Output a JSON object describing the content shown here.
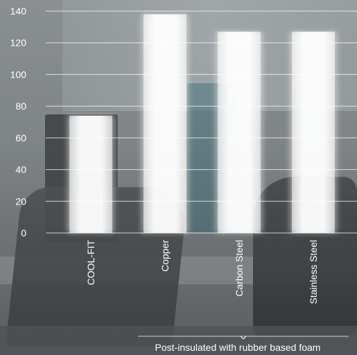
{
  "chart_data": {
    "type": "bar",
    "categories": [
      "COOL-FIT",
      "Copper",
      "Carbon Steel",
      "Stainless Steel"
    ],
    "values": [
      74,
      138,
      127,
      127
    ],
    "ylim": [
      0,
      140
    ],
    "yticks": [
      0,
      20,
      40,
      60,
      80,
      100,
      120,
      140
    ],
    "grid": true,
    "bar_color": "#ffffff",
    "annotation": "Post-insulated with rubber based foam",
    "annotation_groups": [
      "Copper",
      "Carbon Steel",
      "Stainless Steel"
    ]
  }
}
